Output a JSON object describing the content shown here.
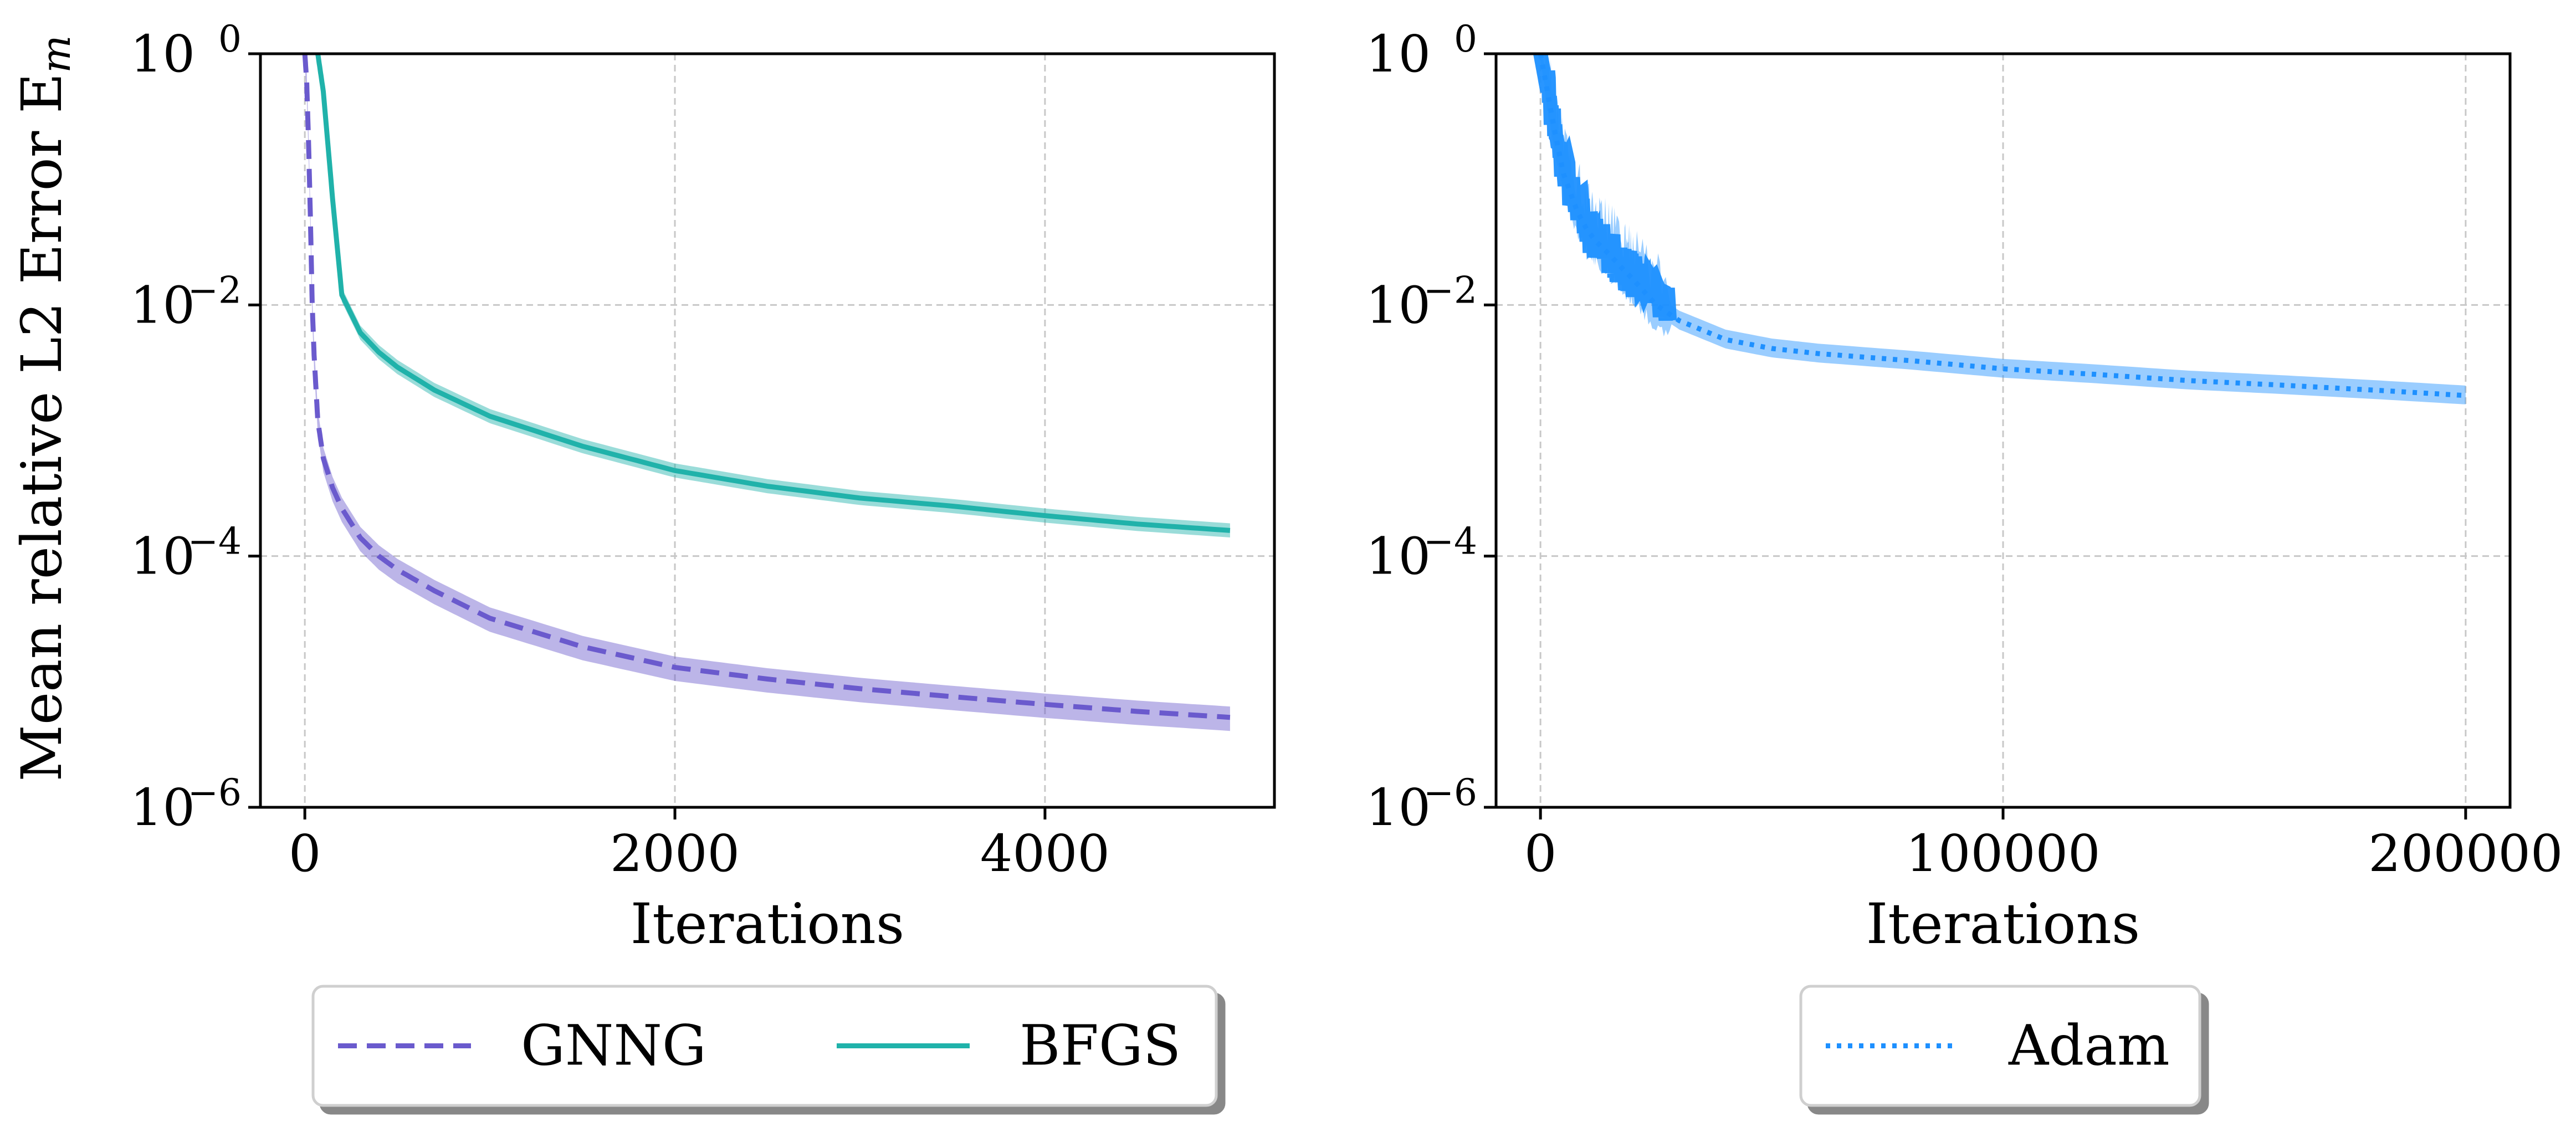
{
  "chart_data": [
    {
      "type": "line",
      "panel": "left",
      "ylabel": "Mean relative L2 Error E",
      "ylabel_subscript": "m",
      "xlabel": "Iterations",
      "yscale": "log",
      "xlim": [
        -240,
        5240
      ],
      "ylim_exp": [
        -6,
        0
      ],
      "xticks": [
        0,
        2000,
        4000
      ],
      "yticks_exp": [
        0,
        -2,
        -4,
        -6
      ],
      "ytick_base": "10",
      "grid": true,
      "legend": {
        "placement": "below",
        "entries": [
          "GNNG",
          "BFGS"
        ]
      },
      "series": [
        {
          "name": "GNNG",
          "color": "#6a5acd",
          "style": "dashed",
          "x": [
            0,
            10,
            20,
            30,
            40,
            50,
            70,
            100,
            150,
            200,
            300,
            400,
            500,
            700,
            1000,
            1500,
            2000,
            2500,
            3000,
            3500,
            4000,
            4500,
            5000
          ],
          "y": [
            1.0,
            0.6,
            0.2,
            0.05,
            0.01,
            0.004,
            0.0012,
            0.0006,
            0.00035,
            0.00024,
            0.00014,
            0.0001,
            7.8e-05,
            5.3e-05,
            3.2e-05,
            1.9e-05,
            1.3e-05,
            1.05e-05,
            8.8e-06,
            7.6e-06,
            6.6e-06,
            5.8e-06,
            5.2e-06
          ],
          "band_low_factor": 0.78,
          "band_high_factor": 1.22
        },
        {
          "name": "BFGS",
          "color": "#20b2aa",
          "style": "solid",
          "x": [
            70,
            100,
            150,
            200,
            300,
            400,
            500,
            700,
            1000,
            1500,
            2000,
            2500,
            3000,
            3500,
            4000,
            4500,
            5000
          ],
          "y": [
            1.0,
            0.5,
            0.07,
            0.012,
            0.006,
            0.0042,
            0.0032,
            0.0021,
            0.0013,
            0.00075,
            0.00048,
            0.00036,
            0.00029,
            0.00025,
            0.00021,
            0.00018,
            0.00016
          ],
          "band_low_factor": 0.88,
          "band_high_factor": 1.14
        }
      ]
    },
    {
      "type": "line",
      "panel": "right",
      "ylabel": "",
      "xlabel": "Iterations",
      "yscale": "log",
      "xlim": [
        -9600,
        209600
      ],
      "ylim_exp": [
        -6,
        0
      ],
      "xticks": [
        0,
        100000,
        200000
      ],
      "yticks_exp": [
        0,
        -2,
        -4,
        -6
      ],
      "ytick_base": "10",
      "grid": true,
      "legend": {
        "placement": "below",
        "entries": [
          "Adam"
        ]
      },
      "series": [
        {
          "name": "Adam",
          "color": "#1e90ff",
          "style": "dotted",
          "x": [
            0,
            1500,
            3000,
            5000,
            8000,
            10000,
            12000,
            15000,
            18000,
            20000,
            25000,
            30000,
            40000,
            50000,
            60000,
            80000,
            100000,
            120000,
            140000,
            160000,
            180000,
            200000
          ],
          "y": [
            1.0,
            0.5,
            0.25,
            0.11,
            0.055,
            0.04,
            0.032,
            0.025,
            0.019,
            0.016,
            0.01,
            0.0075,
            0.0053,
            0.0045,
            0.0041,
            0.0036,
            0.0031,
            0.0028,
            0.0025,
            0.0023,
            0.0021,
            0.0019
          ],
          "band_low_factor": 0.85,
          "band_high_factor": 1.2,
          "noise_region_end": 28000
        }
      ]
    }
  ]
}
